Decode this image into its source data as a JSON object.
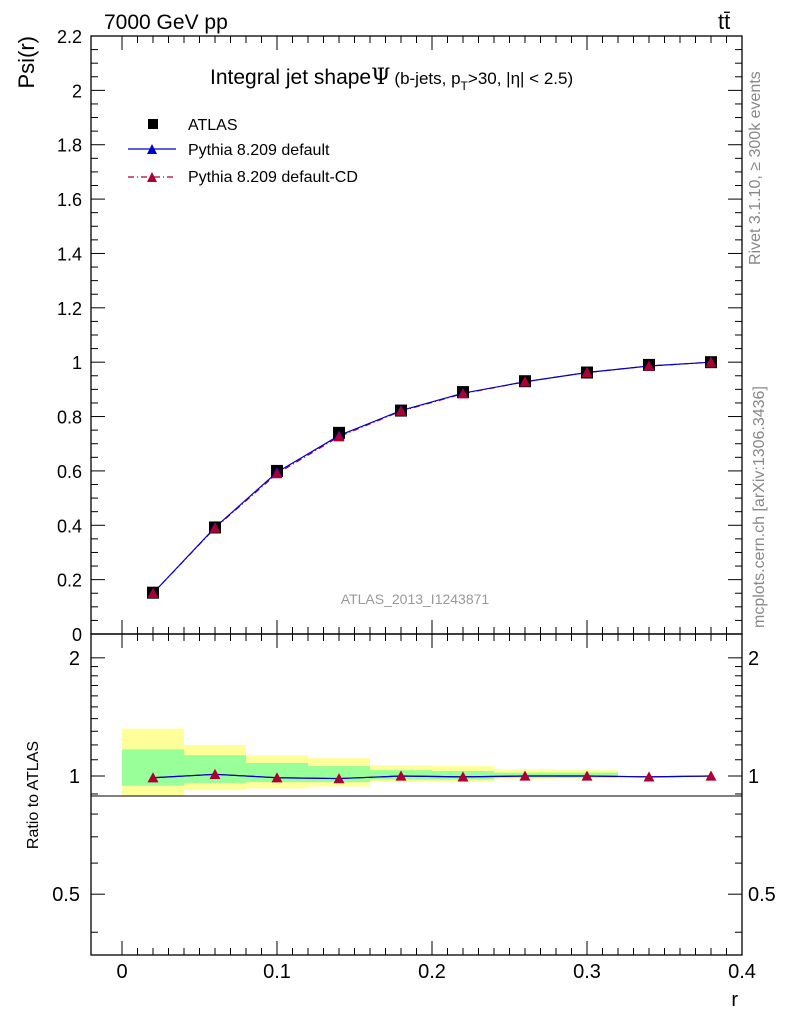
{
  "header": {
    "energy_label": "7000 GeV pp",
    "process_label": "tt̄"
  },
  "side_labels": {
    "rivet": "Rivet 3.1.10, ≥ 300k events",
    "mcplots": "mcplots.cern.ch [arXiv:1306.3436]"
  },
  "chart_data": [
    {
      "type": "scatter",
      "panel": "main",
      "title_main": "Integral jet shape",
      "title_psi": "Ψ",
      "title_open": "(b-jets, p",
      "title_sub": "T",
      "title_close": ">30, |η| < 2.5)",
      "watermark": "ATLAS_2013_I1243871",
      "xlabel": "r",
      "ylabel": "Psi(r)",
      "xlim": [
        -0.02,
        0.4
      ],
      "ylim": [
        0,
        2.2
      ],
      "yticks": [
        0.2,
        0.4,
        0.6,
        0.8,
        1,
        1.2,
        1.4,
        1.6,
        1.8,
        2,
        2.2
      ],
      "ytick_labels": [
        "0.2",
        "0.4",
        "0.6",
        "0.8",
        "1",
        "1.2",
        "1.4",
        "1.6",
        "1.8",
        "2",
        "2.2"
      ],
      "ybottom_label": "0",
      "x": [
        0.02,
        0.06,
        0.1,
        0.14,
        0.18,
        0.22,
        0.26,
        0.3,
        0.34,
        0.38
      ],
      "series": [
        {
          "name": "ATLAS",
          "marker": "square",
          "color": "#000000",
          "values": [
            0.152,
            0.392,
            0.6,
            0.74,
            0.822,
            0.89,
            0.93,
            0.962,
            0.99,
            1.0
          ]
        },
        {
          "name": "Pythia 8.209 default",
          "marker": "triangle",
          "color": "#0000cc",
          "line": "solid",
          "values": [
            0.15,
            0.392,
            0.595,
            0.73,
            0.822,
            0.886,
            0.928,
            0.962,
            0.986,
            1.0
          ]
        },
        {
          "name": "Pythia 8.209 default-CD",
          "marker": "triangle",
          "color": "#aa0033",
          "line": "dashdot",
          "values": [
            0.15,
            0.39,
            0.59,
            0.726,
            0.82,
            0.884,
            0.928,
            0.962,
            0.986,
            1.0
          ]
        }
      ]
    },
    {
      "type": "line",
      "panel": "ratio",
      "ylabel": "Ratio to ATLAS",
      "xlabel": "r",
      "xlim": [
        -0.02,
        0.4
      ],
      "ylim": [
        0.35,
        2.3
      ],
      "yticks": [
        0.5,
        1,
        2
      ],
      "ytick_labels": [
        "0.5",
        "1",
        "2"
      ],
      "xticks": [
        0,
        0.1,
        0.2,
        0.3,
        0.4
      ],
      "xtick_labels": [
        "0",
        "0.1",
        "0.2",
        "0.3",
        "0.4"
      ],
      "bands": {
        "bin_edges": [
          0.0,
          0.04,
          0.08,
          0.12,
          0.16,
          0.2,
          0.24,
          0.28,
          0.32
        ],
        "yellow_color": "#ffff99",
        "green_color": "#99ff99",
        "yellow": [
          [
            0.89,
            1.32
          ],
          [
            0.92,
            1.2
          ],
          [
            0.93,
            1.13
          ],
          [
            0.94,
            1.11
          ],
          [
            0.965,
            1.065
          ],
          [
            0.965,
            1.06
          ],
          [
            0.98,
            1.04
          ],
          [
            0.985,
            1.035
          ]
        ],
        "green": [
          [
            0.945,
            1.17
          ],
          [
            0.96,
            1.13
          ],
          [
            0.965,
            1.08
          ],
          [
            0.965,
            1.06
          ],
          [
            0.98,
            1.035
          ],
          [
            0.98,
            1.03
          ],
          [
            0.99,
            1.02
          ],
          [
            0.99,
            1.02
          ]
        ]
      },
      "x": [
        0.02,
        0.06,
        0.1,
        0.14,
        0.18,
        0.22,
        0.26,
        0.3,
        0.34,
        0.38
      ],
      "series": [
        {
          "name": "Pythia 8.209 default",
          "color": "#0000cc",
          "values": [
            0.99,
            1.01,
            0.99,
            0.985,
            1.0,
            0.995,
            1.0,
            1.0,
            0.995,
            1.0
          ]
        },
        {
          "name": "Pythia 8.209 default-CD",
          "color": "#aa0033",
          "values": [
            0.99,
            1.01,
            0.99,
            0.985,
            1.0,
            0.995,
            1.0,
            1.0,
            0.995,
            1.0
          ]
        }
      ]
    }
  ]
}
